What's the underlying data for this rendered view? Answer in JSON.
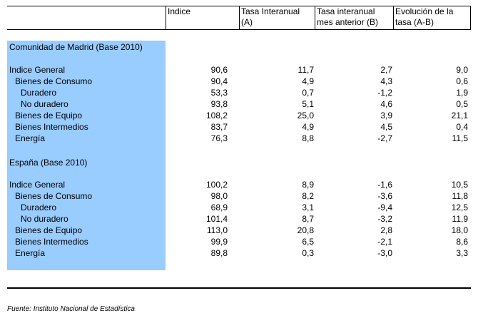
{
  "headers": {
    "indice": "Indice",
    "tasa_a": "Tasa Interanual\n(A)",
    "tasa_b": "Tasa interanual\nmes anterior (B)",
    "evolucion": "Evolución de la\ntasa (A-B)"
  },
  "sections": [
    {
      "title": "Comunidad de Madrid (Base 2010)",
      "rows": [
        {
          "label": "Indice General",
          "indent": 0,
          "indice": "90,6",
          "a": "11,7",
          "b": "2,7",
          "ev": "9,0"
        },
        {
          "label": "Bienes de Consumo",
          "indent": 1,
          "indice": "90,4",
          "a": "4,9",
          "b": "4,3",
          "ev": "0,6"
        },
        {
          "label": "Duradero",
          "indent": 2,
          "indice": "53,3",
          "a": "0,7",
          "b": "-1,2",
          "ev": "1,9"
        },
        {
          "label": "No duradero",
          "indent": 2,
          "indice": "93,8",
          "a": "5,1",
          "b": "4,6",
          "ev": "0,5"
        },
        {
          "label": "Bienes de Equipo",
          "indent": 1,
          "indice": "108,2",
          "a": "25,0",
          "b": "3,9",
          "ev": "21,1"
        },
        {
          "label": "Bienes Intermedios",
          "indent": 1,
          "indice": "83,7",
          "a": "4,9",
          "b": "4,5",
          "ev": "0,4"
        },
        {
          "label": "Energía",
          "indent": 1,
          "indice": "76,3",
          "a": "8,8",
          "b": "-2,7",
          "ev": "11,5"
        }
      ]
    },
    {
      "title": "España (Base 2010)",
      "rows": [
        {
          "label": "Indice General",
          "indent": 0,
          "indice": "100,2",
          "a": "8,9",
          "b": "-1,6",
          "ev": "10,5"
        },
        {
          "label": "Bienes de Consumo",
          "indent": 1,
          "indice": "98,0",
          "a": "8,2",
          "b": "-3,6",
          "ev": "11,8"
        },
        {
          "label": "Duradero",
          "indent": 2,
          "indice": "68,9",
          "a": "3,1",
          "b": "-9,4",
          "ev": "12,5"
        },
        {
          "label": "No duradero",
          "indent": 2,
          "indice": "101,4",
          "a": "8,7",
          "b": "-3,2",
          "ev": "11,9"
        },
        {
          "label": "Bienes de Equipo",
          "indent": 1,
          "indice": "113,0",
          "a": "20,8",
          "b": "2,8",
          "ev": "18,0"
        },
        {
          "label": "Bienes Intermedios",
          "indent": 1,
          "indice": "99,9",
          "a": "6,5",
          "b": "-2,1",
          "ev": "8,6"
        },
        {
          "label": "Energía",
          "indent": 1,
          "indice": "89,8",
          "a": "0,3",
          "b": "-3,0",
          "ev": "3,3"
        }
      ]
    }
  ],
  "footer": {
    "source": "Fuente: Instituto Nacional de Estadística"
  },
  "colors": {
    "label_column_fill": "#99ccff"
  }
}
